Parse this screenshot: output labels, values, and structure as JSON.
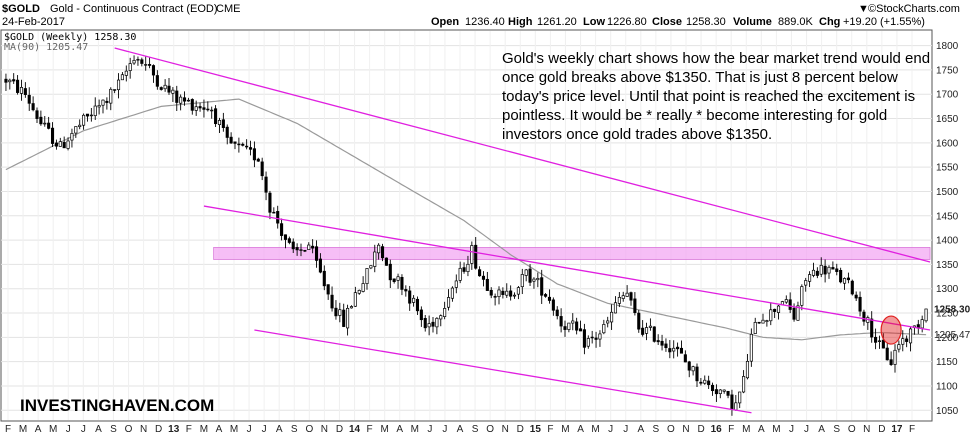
{
  "header": {
    "symbol": "$GOLD",
    "description": "Gold - Continuous Contract (EOD)",
    "exchange": "CME",
    "date": "24-Feb-2017",
    "open_label": "Open",
    "open": "1236.40",
    "high_label": "High",
    "high": "1261.20",
    "low_label": "Low",
    "low": "1226.80",
    "close_label": "Close",
    "close": "1258.30",
    "volume_label": "Volume",
    "volume": "889.0K",
    "chg_label": "Chg",
    "chg": "+19.20 (+1.55%)",
    "brand_symbol": "▼",
    "brand": "©StockCharts.com"
  },
  "legend": {
    "main": "$GOLD (Weekly) 1258.30",
    "ma": "MA(90) 1205.47"
  },
  "annotation": [
    "Gold's weekly chart shows how the bear market trend would end",
    "once gold breaks above $1350. That is just 8 percent below",
    "today's price level. Until that point is reached the excitement is",
    "pointless. It would be * really * become interesting for gold",
    "investors once gold trades above $1350."
  ],
  "watermark": "INVESTINGHAVEN.COM",
  "colors": {
    "candle": "#000000",
    "moving_average": "#9a9a9a",
    "trendline": "#e020e0",
    "resistance_band": "#f3a8f3",
    "highlight_circle": "#e02020",
    "grid": "#e3e3e3"
  },
  "chart_data": {
    "type": "candlestick",
    "period": "weekly",
    "x_range": [
      "2012-02",
      "2017-02"
    ],
    "ylim": [
      1030,
      1830
    ],
    "y_ticks": [
      1050,
      1100,
      1150,
      1200,
      1250,
      1300,
      1350,
      1400,
      1450,
      1500,
      1550,
      1600,
      1650,
      1700,
      1750,
      1800
    ],
    "y_tick_labels": [
      "1050",
      "1100",
      "1150",
      "1200",
      "1250",
      "1300",
      "1350",
      "1400",
      "1450",
      "1500",
      "1550",
      "1600",
      "1650",
      "1700",
      "1750",
      "1800"
    ],
    "last_close": 1258.3,
    "ma_last": 1205.47,
    "x_tick_labels": [
      "F",
      "M",
      "A",
      "M",
      "J",
      "J",
      "A",
      "S",
      "O",
      "N",
      "D",
      "13",
      "F",
      "M",
      "A",
      "M",
      "J",
      "J",
      "A",
      "S",
      "O",
      "N",
      "D",
      "14",
      "F",
      "M",
      "A",
      "M",
      "J",
      "J",
      "A",
      "S",
      "O",
      "N",
      "D",
      "15",
      "F",
      "M",
      "A",
      "M",
      "J",
      "J",
      "A",
      "S",
      "O",
      "N",
      "D",
      "16",
      "F",
      "M",
      "A",
      "M",
      "J",
      "J",
      "A",
      "S",
      "O",
      "N",
      "D",
      "17",
      "F"
    ],
    "price_anchors": [
      [
        0,
        1730
      ],
      [
        5,
        1700
      ],
      [
        9,
        1640
      ],
      [
        14,
        1590
      ],
      [
        17,
        1620
      ],
      [
        22,
        1660
      ],
      [
        26,
        1690
      ],
      [
        30,
        1730
      ],
      [
        33,
        1780
      ],
      [
        36,
        1760
      ],
      [
        40,
        1720
      ],
      [
        44,
        1690
      ],
      [
        48,
        1680
      ],
      [
        53,
        1670
      ],
      [
        57,
        1600
      ],
      [
        62,
        1580
      ],
      [
        65,
        1570
      ],
      [
        68,
        1470
      ],
      [
        71,
        1420
      ],
      [
        74,
        1370
      ],
      [
        78,
        1390
      ],
      [
        81,
        1330
      ],
      [
        84,
        1270
      ],
      [
        87,
        1230
      ],
      [
        90,
        1290
      ],
      [
        93,
        1330
      ],
      [
        96,
        1390
      ],
      [
        99,
        1330
      ],
      [
        102,
        1310
      ],
      [
        105,
        1270
      ],
      [
        108,
        1220
      ],
      [
        111,
        1240
      ],
      [
        114,
        1290
      ],
      [
        117,
        1330
      ],
      [
        120,
        1380
      ],
      [
        122,
        1330
      ],
      [
        125,
        1300
      ],
      [
        128,
        1280
      ],
      [
        131,
        1300
      ],
      [
        134,
        1330
      ],
      [
        137,
        1310
      ],
      [
        140,
        1280
      ],
      [
        143,
        1230
      ],
      [
        146,
        1220
      ],
      [
        149,
        1190
      ],
      [
        152,
        1200
      ],
      [
        155,
        1230
      ],
      [
        158,
        1280
      ],
      [
        160,
        1290
      ],
      [
        163,
        1220
      ],
      [
        166,
        1210
      ],
      [
        169,
        1190
      ],
      [
        172,
        1180
      ],
      [
        175,
        1150
      ],
      [
        178,
        1120
      ],
      [
        181,
        1100
      ],
      [
        184,
        1090
      ],
      [
        186,
        1070
      ],
      [
        188,
        1060
      ],
      [
        190,
        1110
      ],
      [
        192,
        1200
      ],
      [
        194,
        1240
      ],
      [
        197,
        1250
      ],
      [
        200,
        1280
      ],
      [
        203,
        1240
      ],
      [
        206,
        1320
      ],
      [
        209,
        1340
      ],
      [
        212,
        1340
      ],
      [
        215,
        1320
      ],
      [
        218,
        1300
      ],
      [
        220,
        1260
      ],
      [
        222,
        1230
      ],
      [
        225,
        1180
      ],
      [
        228,
        1150
      ],
      [
        230,
        1190
      ],
      [
        232,
        1200
      ],
      [
        234,
        1220
      ],
      [
        236,
        1240
      ],
      [
        237,
        1258.3
      ]
    ],
    "moving_average": {
      "name": "MA(90)",
      "points": [
        [
          0,
          1545
        ],
        [
          20,
          1625
        ],
        [
          40,
          1675
        ],
        [
          60,
          1690
        ],
        [
          75,
          1640
        ],
        [
          90,
          1570
        ],
        [
          105,
          1500
        ],
        [
          118,
          1440
        ],
        [
          130,
          1370
        ],
        [
          142,
          1310
        ],
        [
          155,
          1270
        ],
        [
          170,
          1245
        ],
        [
          185,
          1220
        ],
        [
          195,
          1200
        ],
        [
          205,
          1195
        ],
        [
          215,
          1205
        ],
        [
          225,
          1210
        ],
        [
          237,
          1205.47
        ]
      ]
    },
    "trendlines": [
      {
        "from": [
          28,
          1795
        ],
        "to": [
          237,
          1355
        ]
      },
      {
        "from": [
          51,
          1470
        ],
        "to": [
          237,
          1215
        ]
      },
      {
        "from": [
          64,
          1215
        ],
        "to": [
          191,
          1045
        ]
      }
    ],
    "resistance_band": {
      "low": 1360,
      "high": 1385,
      "from": 54,
      "to": 237
    },
    "highlight": {
      "center": [
        228,
        1215
      ]
    }
  }
}
